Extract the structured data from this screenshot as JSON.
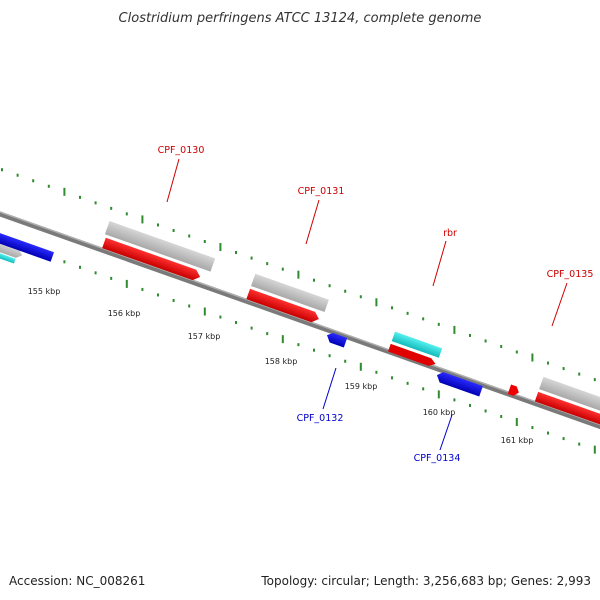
{
  "title": "Clostridium perfringens ATCC 13124, complete genome",
  "footer": {
    "accession": "Accession: NC_008261",
    "summary": "Topology: circular; Length: 3,256,683 bp; Genes: 2,993"
  },
  "colors": {
    "backbone": "#777777",
    "tick_dots": "#2e8b2e",
    "forward_gene": "#ee0000",
    "reverse_gene": "#1010ee",
    "pseudo_gene": "#bbbbbb",
    "rna_gene": "#22dddd",
    "label_forward": "#cc0000",
    "label_reverse": "#0000cc",
    "kbp_text": "#222222"
  },
  "ruler": [
    "155 kbp",
    "156 kbp",
    "157 kbp",
    "158 kbp",
    "159 kbp",
    "160 kbp",
    "161 kbp"
  ],
  "gene_labels": {
    "cpf0130": "CPF_0130",
    "cpf0131": "CPF_0131",
    "rbr": "rbr",
    "cpf0135": "CPF_0135",
    "cpf0132": "CPF_0132",
    "cpf0134": "CPF_0134"
  }
}
